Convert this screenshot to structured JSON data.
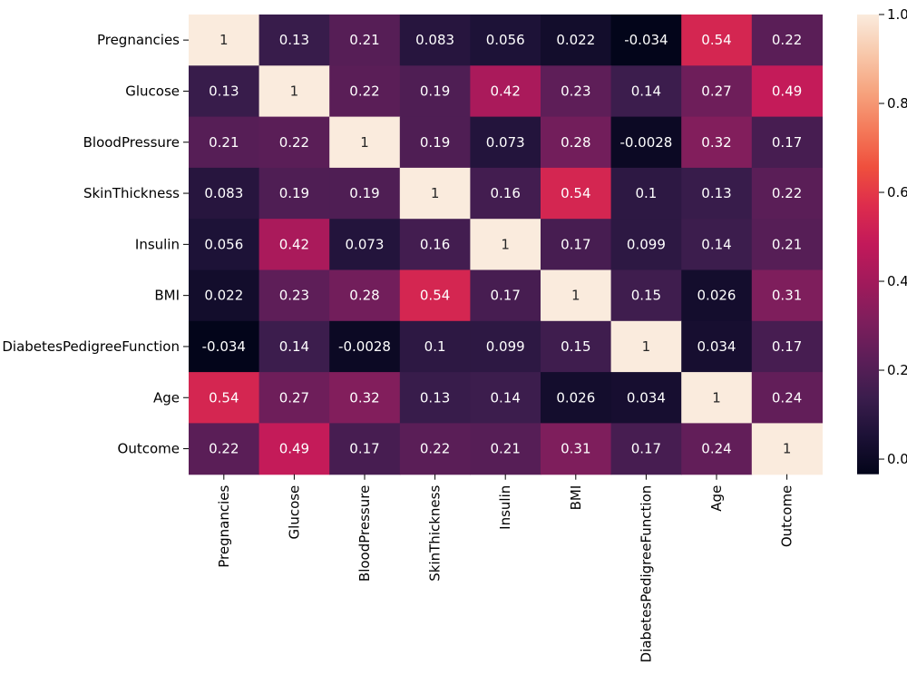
{
  "chart_data": {
    "type": "heatmap",
    "title": "",
    "xlabel": "",
    "ylabel": "",
    "categories": [
      "Pregnancies",
      "Glucose",
      "BloodPressure",
      "SkinThickness",
      "Insulin",
      "BMI",
      "DiabetesPedigreeFunction",
      "Age",
      "Outcome"
    ],
    "x_labels": [
      "Pregnancies",
      "Glucose",
      "BloodPressure",
      "SkinThickness",
      "Insulin",
      "BMI",
      "DiabetesPedigreeFunction",
      "Age",
      "Outcome"
    ],
    "y_labels": [
      "Pregnancies",
      "Glucose",
      "BloodPressure",
      "SkinThickness",
      "Insulin",
      "BMI",
      "DiabetesPedigreeFunction",
      "Age",
      "Outcome"
    ],
    "values": [
      [
        1,
        0.13,
        0.21,
        0.083,
        0.056,
        0.022,
        -0.034,
        0.54,
        0.22
      ],
      [
        0.13,
        1,
        0.22,
        0.19,
        0.42,
        0.23,
        0.14,
        0.27,
        0.49
      ],
      [
        0.21,
        0.22,
        1,
        0.19,
        0.073,
        0.28,
        -0.0028,
        0.32,
        0.17
      ],
      [
        0.083,
        0.19,
        0.19,
        1,
        0.16,
        0.54,
        0.1,
        0.13,
        0.22
      ],
      [
        0.056,
        0.42,
        0.073,
        0.16,
        1,
        0.17,
        0.099,
        0.14,
        0.21
      ],
      [
        0.022,
        0.23,
        0.28,
        0.54,
        0.17,
        1,
        0.15,
        0.026,
        0.31
      ],
      [
        -0.034,
        0.14,
        -0.0028,
        0.1,
        0.099,
        0.15,
        1,
        0.034,
        0.17
      ],
      [
        0.54,
        0.27,
        0.32,
        0.13,
        0.14,
        0.026,
        0.034,
        1,
        0.24
      ],
      [
        0.22,
        0.49,
        0.17,
        0.22,
        0.21,
        0.31,
        0.17,
        0.24,
        1
      ]
    ],
    "cell_labels": [
      [
        "1",
        "0.13",
        "0.21",
        "0.083",
        "0.056",
        "0.022",
        "-0.034",
        "0.54",
        "0.22"
      ],
      [
        "0.13",
        "1",
        "0.22",
        "0.19",
        "0.42",
        "0.23",
        "0.14",
        "0.27",
        "0.49"
      ],
      [
        "0.21",
        "0.22",
        "1",
        "0.19",
        "0.073",
        "0.28",
        "-0.0028",
        "0.32",
        "0.17"
      ],
      [
        "0.083",
        "0.19",
        "0.19",
        "1",
        "0.16",
        "0.54",
        "0.1",
        "0.13",
        "0.22"
      ],
      [
        "0.056",
        "0.42",
        "0.073",
        "0.16",
        "1",
        "0.17",
        "0.099",
        "0.14",
        "0.21"
      ],
      [
        "0.022",
        "0.23",
        "0.28",
        "0.54",
        "0.17",
        "1",
        "0.15",
        "0.026",
        "0.31"
      ],
      [
        "-0.034",
        "0.14",
        "-0.0028",
        "0.1",
        "0.099",
        "0.15",
        "1",
        "0.034",
        "0.17"
      ],
      [
        "0.54",
        "0.27",
        "0.32",
        "0.13",
        "0.14",
        "0.026",
        "0.034",
        "1",
        "0.24"
      ],
      [
        "0.22",
        "0.49",
        "0.17",
        "0.22",
        "0.21",
        "0.31",
        "0.17",
        "0.24",
        "1"
      ]
    ],
    "colormap": "rocket",
    "vmin": -0.034,
    "vmax": 1.0,
    "colorbar": {
      "ticks": [
        0.0,
        0.2,
        0.4,
        0.6,
        0.8,
        1.0
      ],
      "tick_labels": [
        "0.0",
        "0.2",
        "0.4",
        "0.6",
        "0.8",
        "1.0"
      ]
    },
    "colormap_stops": [
      "#03051a",
      "#1c1136",
      "#3b1d4d",
      "#5c1e58",
      "#7e1e5c",
      "#a11a5b",
      "#c2195a",
      "#dd2c4d",
      "#ef4f3d",
      "#f47a5a",
      "#f6a47f",
      "#f8c9ac",
      "#faebdd"
    ],
    "grid": false,
    "legend": "colorbar-right"
  }
}
